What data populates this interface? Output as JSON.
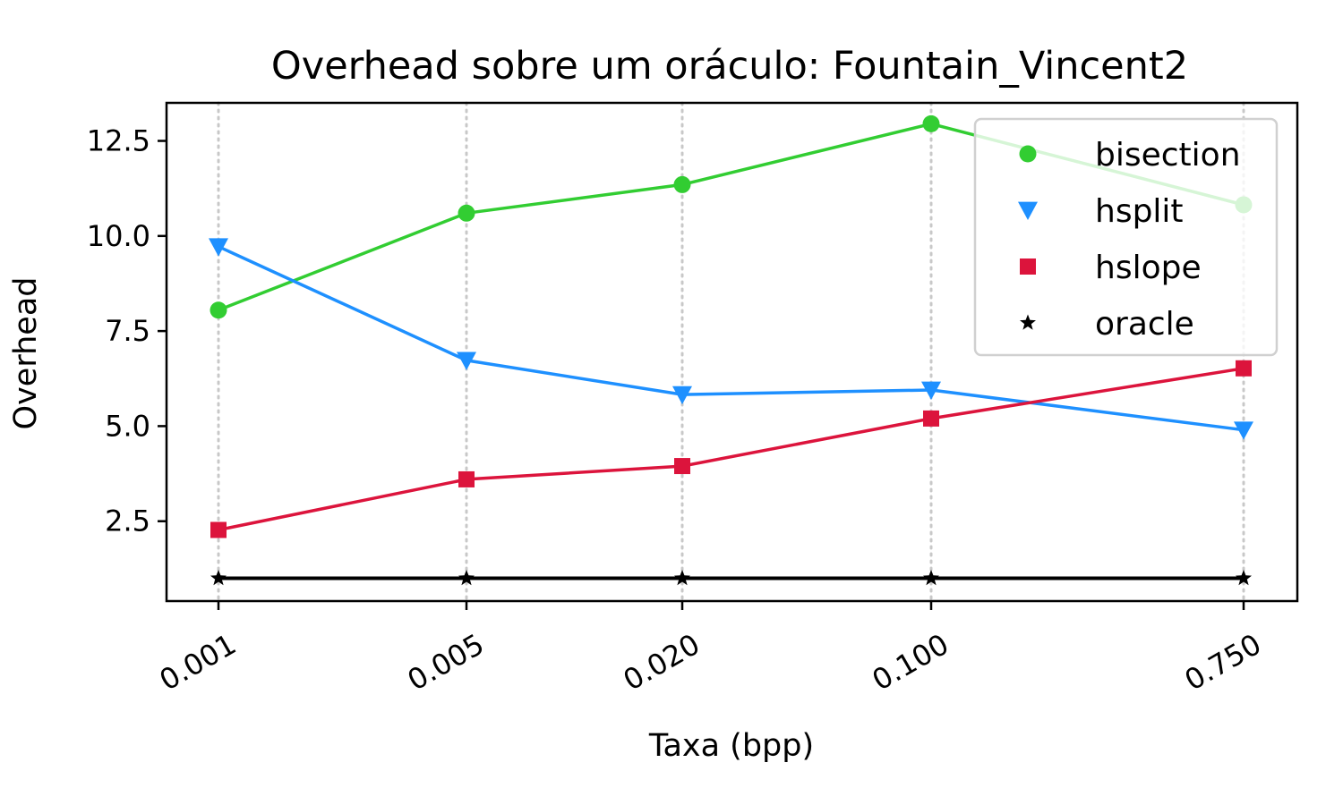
{
  "chart_data": {
    "type": "line",
    "title": "Overhead sobre um oráculo: Fountain_Vincent2",
    "xlabel": "Taxa (bpp)",
    "ylabel": "Overhead",
    "x_scale": "log",
    "x": [
      0.001,
      0.005,
      0.02,
      0.1,
      0.75
    ],
    "x_tick_labels": [
      "0.001",
      "0.005",
      "0.020",
      "0.100",
      "0.750"
    ],
    "y_ticks": [
      2.5,
      5.0,
      7.5,
      10.0,
      12.5
    ],
    "y_tick_labels": [
      "2.5",
      "5.0",
      "7.5",
      "10.0",
      "12.5"
    ],
    "ylim": [
      0.4,
      13.5
    ],
    "grid": "vertical dotted",
    "legend_position": "top-right",
    "series": [
      {
        "name": "bisection",
        "color": "#32cd32",
        "marker": "circle",
        "values": [
          8.05,
          10.6,
          11.35,
          12.95,
          10.82
        ]
      },
      {
        "name": "hsplit",
        "color": "#1e90ff",
        "marker": "triangle-down",
        "values": [
          9.72,
          6.73,
          5.83,
          5.95,
          4.9
        ]
      },
      {
        "name": "hslope",
        "color": "#dc143c",
        "marker": "square",
        "values": [
          2.27,
          3.6,
          3.95,
          5.2,
          6.52
        ]
      },
      {
        "name": "oracle",
        "color": "#000000",
        "marker": "star",
        "values": [
          1.0,
          1.0,
          1.0,
          1.0,
          1.0
        ]
      }
    ]
  }
}
